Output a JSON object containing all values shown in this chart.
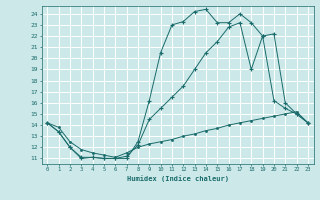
{
  "title": "",
  "xlabel": "Humidex (Indice chaleur)",
  "bg_color": "#cce8e8",
  "grid_color": "#ffffff",
  "line_color": "#1a6b6b",
  "xlim": [
    -0.5,
    23.5
  ],
  "ylim": [
    10.5,
    24.7
  ],
  "xticks": [
    0,
    1,
    2,
    3,
    4,
    5,
    6,
    7,
    8,
    9,
    10,
    11,
    12,
    13,
    14,
    15,
    16,
    17,
    18,
    19,
    20,
    21,
    22,
    23
  ],
  "yticks": [
    11,
    12,
    13,
    14,
    15,
    16,
    17,
    18,
    19,
    20,
    21,
    22,
    23,
    24
  ],
  "line1_x": [
    0,
    1,
    2,
    3,
    4,
    5,
    6,
    7,
    8,
    9,
    10,
    11,
    12,
    13,
    14,
    15,
    16,
    17,
    18,
    19,
    20,
    21,
    22,
    23
  ],
  "line1_y": [
    14.2,
    13.4,
    12.0,
    11.0,
    11.1,
    11.0,
    11.0,
    11.0,
    12.5,
    16.2,
    20.5,
    23.0,
    23.3,
    24.2,
    24.4,
    23.2,
    23.2,
    24.0,
    23.2,
    22.0,
    22.2,
    16.0,
    15.0,
    14.2
  ],
  "line2_x": [
    0,
    1,
    2,
    3,
    4,
    5,
    6,
    7,
    8,
    9,
    10,
    11,
    12,
    13,
    14,
    15,
    16,
    17,
    18,
    19,
    20,
    21,
    22,
    23
  ],
  "line2_y": [
    14.2,
    13.4,
    12.0,
    11.1,
    11.1,
    11.0,
    11.0,
    11.2,
    12.2,
    14.5,
    15.5,
    16.5,
    17.5,
    19.0,
    20.5,
    21.5,
    22.8,
    23.2,
    19.0,
    22.0,
    16.2,
    15.5,
    15.0,
    14.2
  ],
  "line3_x": [
    0,
    1,
    2,
    3,
    4,
    5,
    6,
    7,
    8,
    9,
    10,
    11,
    12,
    13,
    14,
    15,
    16,
    17,
    18,
    19,
    20,
    21,
    22,
    23
  ],
  "line3_y": [
    14.2,
    13.8,
    12.5,
    11.8,
    11.5,
    11.3,
    11.1,
    11.5,
    12.0,
    12.3,
    12.5,
    12.7,
    13.0,
    13.2,
    13.5,
    13.7,
    14.0,
    14.2,
    14.4,
    14.6,
    14.8,
    15.0,
    15.2,
    14.2
  ]
}
